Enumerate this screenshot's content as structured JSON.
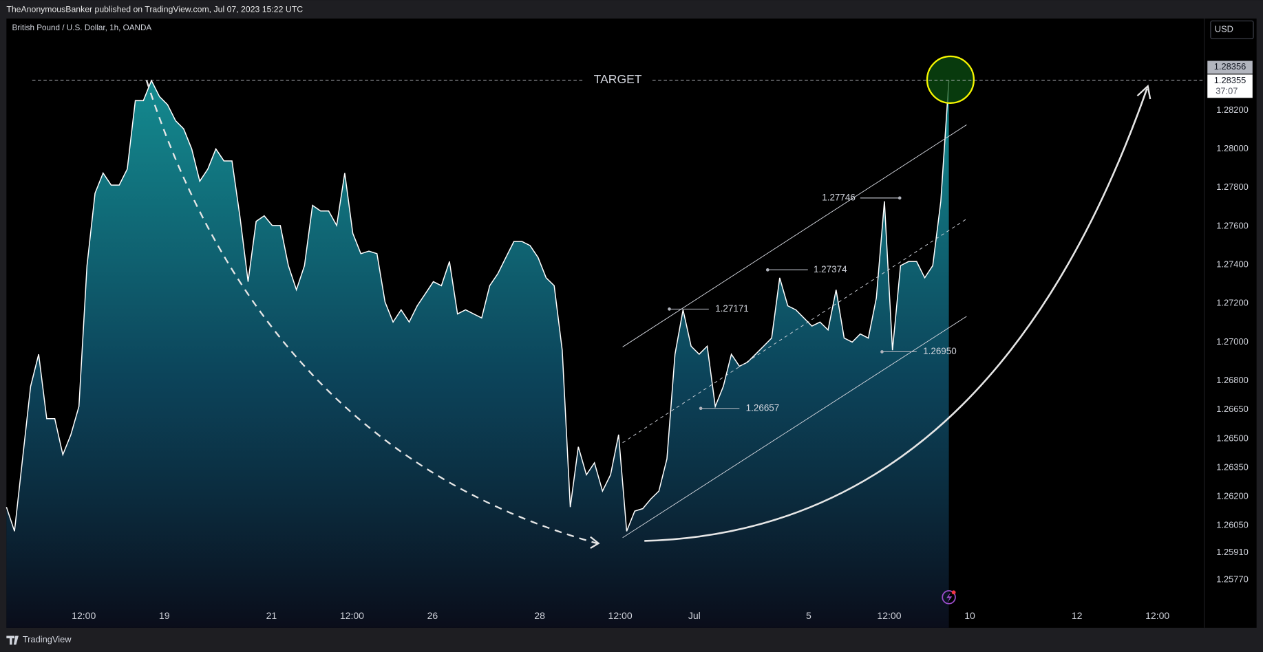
{
  "header": {
    "byline": "TheAnonymousBanker published on TradingView.com, Jul 07, 2023 15:22 UTC",
    "symbol": "British Pound / U.S. Dollar, 1h, OANDA",
    "currency_button": "USD",
    "footer_brand": "TradingView"
  },
  "chart_data": {
    "type": "area",
    "color": "#ffffff",
    "fill_color": "#17a2a8",
    "grid": false,
    "x": [
      0,
      1,
      2,
      3,
      4,
      5,
      6,
      7,
      8,
      9,
      10,
      11,
      12,
      13,
      14,
      15,
      16,
      17,
      18,
      19,
      20,
      21,
      22,
      23,
      24,
      25,
      26,
      27,
      28,
      29,
      30,
      31,
      32,
      33,
      34,
      35,
      36,
      37,
      38,
      39,
      40,
      41,
      42,
      43,
      44,
      45,
      46,
      47,
      48,
      49,
      50,
      51,
      52,
      53,
      54,
      55,
      56,
      57,
      58,
      59,
      60,
      61,
      62,
      63,
      64,
      65,
      66,
      67,
      68,
      69,
      70,
      71,
      72,
      73,
      74,
      75,
      76,
      77,
      78,
      79,
      80,
      81,
      82,
      83,
      84,
      85,
      86,
      87,
      88,
      89,
      90,
      91,
      92,
      93,
      94,
      95,
      96,
      97,
      98,
      99,
      100,
      101,
      102,
      103,
      104,
      105,
      106,
      107,
      108,
      109,
      110,
      111,
      112,
      113,
      114,
      115,
      116,
      117
    ],
    "values": [
      1.26146,
      1.26021,
      1.26396,
      1.26771,
      1.26937,
      1.26604,
      1.26604,
      1.26417,
      1.26521,
      1.26667,
      1.27396,
      1.27771,
      1.27875,
      1.27813,
      1.27813,
      1.27896,
      1.2825,
      1.2825,
      1.28354,
      1.28271,
      1.28229,
      1.28146,
      1.28104,
      1.28,
      1.27833,
      1.27896,
      1.28,
      1.27938,
      1.27938,
      1.27646,
      1.27313,
      1.27625,
      1.27654,
      1.27604,
      1.27604,
      1.27396,
      1.27271,
      1.27396,
      1.27708,
      1.27679,
      1.27679,
      1.27604,
      1.27875,
      1.27563,
      1.27458,
      1.27471,
      1.27458,
      1.27208,
      1.27104,
      1.27167,
      1.27104,
      1.27188,
      1.2725,
      1.27313,
      1.27292,
      1.27417,
      1.27146,
      1.27167,
      1.27146,
      1.27125,
      1.27292,
      1.27354,
      1.27438,
      1.27521,
      1.27521,
      1.275,
      1.27438,
      1.27333,
      1.27292,
      1.26958,
      1.26146,
      1.26458,
      1.26313,
      1.26375,
      1.26229,
      1.26313,
      1.26521,
      1.26021,
      1.26125,
      1.26138,
      1.26188,
      1.26229,
      1.26396,
      1.26937,
      1.27167,
      1.26979,
      1.26937,
      1.26979,
      1.26667,
      1.26771,
      1.26937,
      1.26875,
      1.26896,
      1.26937,
      1.26979,
      1.27021,
      1.27333,
      1.27188,
      1.27167,
      1.27125,
      1.27083,
      1.27104,
      1.27063,
      1.27271,
      1.27021,
      1.27,
      1.27042,
      1.27021,
      1.27229,
      1.27729,
      1.26958,
      1.27396,
      1.27417,
      1.27417,
      1.27333,
      1.27396,
      1.27729,
      1.28354
    ],
    "xlim": [
      0,
      148.7
    ],
    "ylim": [
      1.25521,
      1.28675
    ],
    "xticks": [
      {
        "value": 9.6,
        "label": "12:00"
      },
      {
        "value": 19.6,
        "label": "19"
      },
      {
        "value": 32.9,
        "label": "21"
      },
      {
        "value": 42.9,
        "label": "12:00"
      },
      {
        "value": 52.9,
        "label": "26"
      },
      {
        "value": 66.2,
        "label": "28"
      },
      {
        "value": 76.2,
        "label": "12:00"
      },
      {
        "value": 85.4,
        "label": "Jul"
      },
      {
        "value": 99.6,
        "label": "5"
      },
      {
        "value": 109.6,
        "label": "12:00"
      },
      {
        "value": 119.6,
        "label": "10"
      },
      {
        "value": 132.9,
        "label": "12"
      },
      {
        "value": 142.9,
        "label": "12:00"
      }
    ],
    "yticks": [
      {
        "value": 1.2577,
        "label": "1.25770"
      },
      {
        "value": 1.2591,
        "label": "1.25910"
      },
      {
        "value": 1.2605,
        "label": "1.26050"
      },
      {
        "value": 1.262,
        "label": "1.26200"
      },
      {
        "value": 1.2635,
        "label": "1.26350"
      },
      {
        "value": 1.265,
        "label": "1.26500"
      },
      {
        "value": 1.2665,
        "label": "1.26650"
      },
      {
        "value": 1.268,
        "label": "1.26800"
      },
      {
        "value": 1.27,
        "label": "1.27000"
      },
      {
        "value": 1.272,
        "label": "1.27200"
      },
      {
        "value": 1.274,
        "label": "1.27400"
      },
      {
        "value": 1.276,
        "label": "1.27600"
      },
      {
        "value": 1.278,
        "label": "1.27800"
      },
      {
        "value": 1.28,
        "label": "1.28000"
      },
      {
        "value": 1.282,
        "label": "1.28200"
      }
    ],
    "target": {
      "value": 1.28356,
      "label": "TARGET"
    },
    "last_price": {
      "value": 1.28356,
      "label": "1.28356"
    },
    "bid_price": "1.28355",
    "countdown": "37:07",
    "price_labels": [
      {
        "value": 1.27746,
        "label": "1.27746"
      },
      {
        "value": 1.27374,
        "label": "1.27374"
      },
      {
        "value": 1.27171,
        "label": "1.27171"
      },
      {
        "value": 1.2695,
        "label": "1.26950"
      },
      {
        "value": 1.26657,
        "label": "1.26657"
      }
    ]
  }
}
